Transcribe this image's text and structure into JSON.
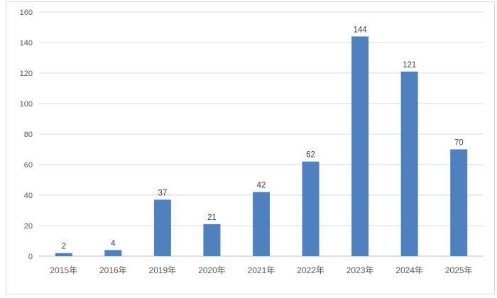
{
  "chart": {
    "background_color": "#ffffff",
    "frame_border_color": "#d9d9d9",
    "bar_color": "#4e81bd",
    "gridline_color": "#d9d9d9",
    "axis_line_color": "#bfbfbf",
    "tick_label_color": "#595959",
    "data_label_color": "#404040"
  },
  "chart_data": {
    "type": "bar",
    "categories": [
      "2015年",
      "2016年",
      "2019年",
      "2020年",
      "2021年",
      "2022年",
      "2023年",
      "2024年",
      "2025年"
    ],
    "values": [
      2,
      4,
      37,
      21,
      42,
      62,
      144,
      121,
      70
    ],
    "data_labels": [
      "2",
      "4",
      "37",
      "21",
      "42",
      "62",
      "144",
      "121",
      "70"
    ],
    "title": "",
    "xlabel": "",
    "ylabel": "",
    "ylim": [
      0,
      160
    ],
    "ytick_step": 20,
    "ytick_labels": [
      "0",
      "20",
      "40",
      "60",
      "80",
      "100",
      "120",
      "140",
      "160"
    ],
    "grid": true,
    "legend": false,
    "data_labels_visible": true
  }
}
